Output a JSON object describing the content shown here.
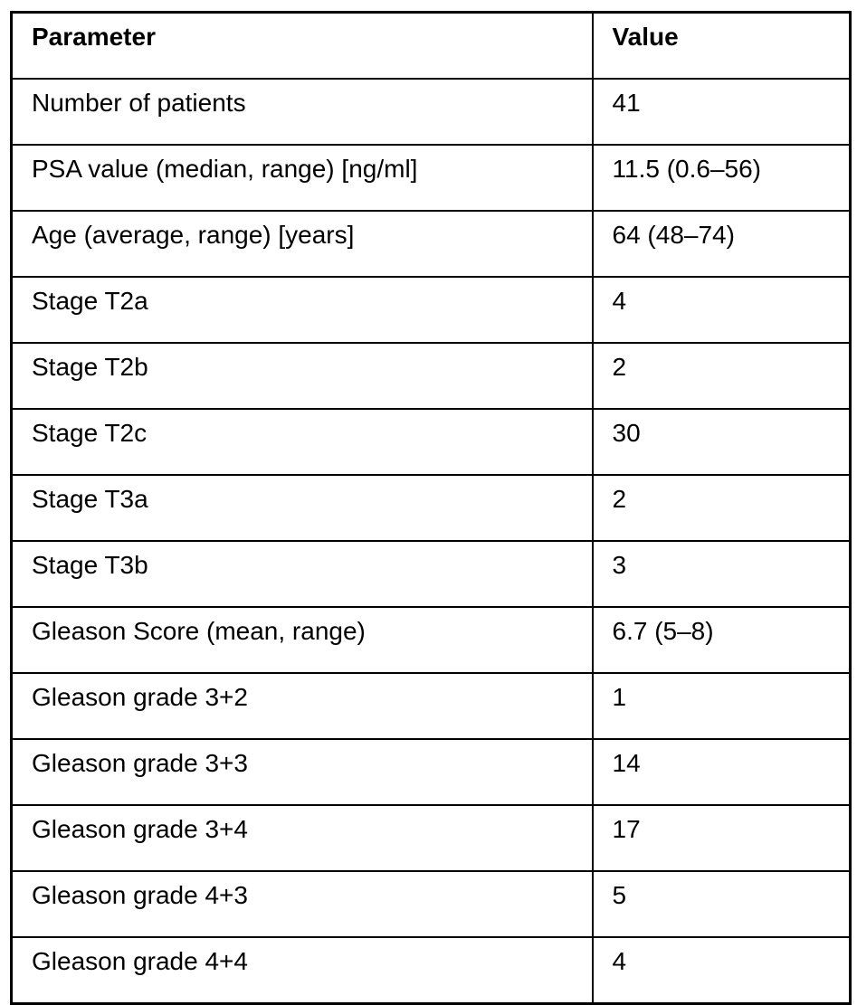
{
  "table": {
    "columns": [
      "Parameter",
      "Value"
    ],
    "rows": [
      [
        "Number of patients",
        "41"
      ],
      [
        "PSA value (median, range) [ng/ml]",
        "11.5 (0.6–56)"
      ],
      [
        "Age (average, range) [years]",
        "64 (48–74)"
      ],
      [
        "Stage T2a",
        "4"
      ],
      [
        "Stage T2b",
        "2"
      ],
      [
        "Stage T2c",
        "30"
      ],
      [
        "Stage T3a",
        "2"
      ],
      [
        "Stage T3b",
        "3"
      ],
      [
        "Gleason Score (mean, range)",
        "6.7 (5–8)"
      ],
      [
        "Gleason grade 3+2",
        "1"
      ],
      [
        "Gleason grade 3+3",
        "14"
      ],
      [
        "Gleason grade 3+4",
        "17"
      ],
      [
        "Gleason grade 4+3",
        "5"
      ],
      [
        "Gleason grade 4+4",
        "4"
      ]
    ],
    "colors": {
      "border": "#000000",
      "text": "#000000",
      "background": "#ffffff"
    }
  }
}
